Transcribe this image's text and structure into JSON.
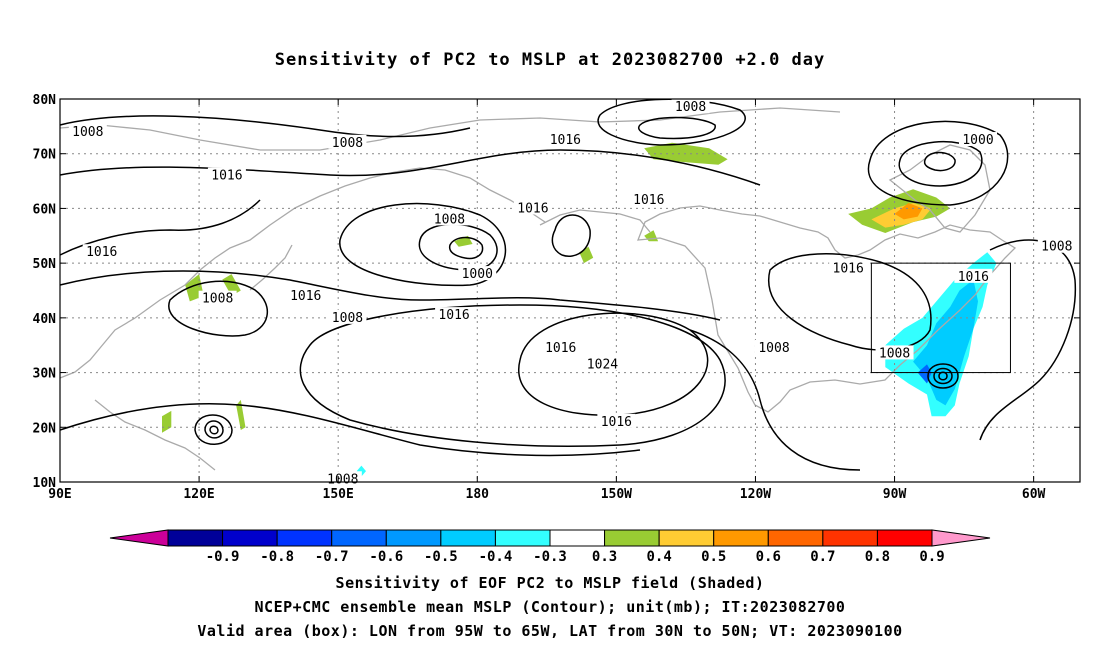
{
  "title": "Sensitivity of PC2 to MSLP at 2023082700 +2.0 day",
  "map": {
    "lon_range": [
      90,
      310
    ],
    "lat_range": [
      10,
      80
    ],
    "lon_ticks": [
      {
        "lon": 90,
        "label": "90E"
      },
      {
        "lon": 120,
        "label": "120E"
      },
      {
        "lon": 150,
        "label": "150E"
      },
      {
        "lon": 180,
        "label": "180"
      },
      {
        "lon": 210,
        "label": "150W"
      },
      {
        "lon": 240,
        "label": "120W"
      },
      {
        "lon": 270,
        "label": "90W"
      },
      {
        "lon": 300,
        "label": "60W"
      }
    ],
    "lat_ticks": [
      {
        "lat": 10,
        "label": "10N"
      },
      {
        "lat": 20,
        "label": "20N"
      },
      {
        "lat": 30,
        "label": "30N"
      },
      {
        "lat": 40,
        "label": "40N"
      },
      {
        "lat": 50,
        "label": "50N"
      },
      {
        "lat": 60,
        "label": "60N"
      },
      {
        "lat": 70,
        "label": "70N"
      },
      {
        "lat": 80,
        "label": "80N"
      }
    ],
    "grid": true,
    "valid_box": {
      "lon_min": 265,
      "lon_max": 295,
      "lat_min": 30,
      "lat_max": 50
    },
    "contour_labels": [
      {
        "text": "1008",
        "lon": 96,
        "lat": 74
      },
      {
        "text": "1008",
        "lon": 152,
        "lat": 72
      },
      {
        "text": "1016",
        "lon": 126,
        "lat": 66
      },
      {
        "text": "1016",
        "lon": 199,
        "lat": 72.5
      },
      {
        "text": "1008",
        "lon": 226,
        "lat": 78.5
      },
      {
        "text": "1000",
        "lon": 288,
        "lat": 72.5
      },
      {
        "text": "1008",
        "lon": 174,
        "lat": 58
      },
      {
        "text": "1016",
        "lon": 192,
        "lat": 60
      },
      {
        "text": "1016",
        "lon": 217,
        "lat": 61.5
      },
      {
        "text": "1000",
        "lon": 180,
        "lat": 48
      },
      {
        "text": "1016",
        "lon": 99,
        "lat": 52
      },
      {
        "text": "1008",
        "lon": 124,
        "lat": 43.5
      },
      {
        "text": "1016",
        "lon": 143,
        "lat": 44
      },
      {
        "text": "1008",
        "lon": 152,
        "lat": 40
      },
      {
        "text": "1016",
        "lon": 175,
        "lat": 40.5
      },
      {
        "text": "1016",
        "lon": 198,
        "lat": 34.5
      },
      {
        "text": "1024",
        "lon": 207,
        "lat": 31.5
      },
      {
        "text": "1008",
        "lon": 244,
        "lat": 34.5
      },
      {
        "text": "1016",
        "lon": 260,
        "lat": 49
      },
      {
        "text": "1008",
        "lon": 270,
        "lat": 33.5
      },
      {
        "text": "1016",
        "lon": 287,
        "lat": 47.5
      },
      {
        "text": "1008",
        "lon": 305,
        "lat": 53
      },
      {
        "text": "1016",
        "lon": 210,
        "lat": 21
      },
      {
        "text": "1008",
        "lon": 151,
        "lat": 10.5
      }
    ],
    "shading": [
      {
        "level": 0.4,
        "color": "#99cc33",
        "lonlat": [
          [
            216,
            71
          ],
          [
            222,
            72
          ],
          [
            230,
            71
          ],
          [
            234,
            69
          ],
          [
            232,
            68
          ],
          [
            224,
            68.5
          ],
          [
            218,
            69
          ]
        ]
      },
      {
        "level": 0.4,
        "color": "#99cc33",
        "lonlat": [
          [
            260,
            59
          ],
          [
            265,
            60
          ],
          [
            269,
            62
          ],
          [
            274,
            63.5
          ],
          [
            279,
            62
          ],
          [
            282,
            60
          ],
          [
            279,
            58.5
          ],
          [
            274,
            57.5
          ],
          [
            268,
            55.5
          ],
          [
            263,
            57
          ]
        ]
      },
      {
        "level": 0.5,
        "color": "#ffcc33",
        "lonlat": [
          [
            265,
            58
          ],
          [
            270,
            60
          ],
          [
            274,
            61
          ],
          [
            278,
            60
          ],
          [
            276,
            58
          ],
          [
            272,
            57
          ],
          [
            268,
            56.5
          ]
        ]
      },
      {
        "level": 0.6,
        "color": "#ff9900",
        "lonlat": [
          [
            270,
            59
          ],
          [
            273,
            61
          ],
          [
            276,
            60
          ],
          [
            275,
            58.5
          ],
          [
            272,
            58
          ]
        ]
      },
      {
        "level": 0.4,
        "color": "#99cc33",
        "lonlat": [
          [
            175,
            54
          ],
          [
            178,
            55
          ],
          [
            179,
            53.5
          ],
          [
            176,
            53
          ]
        ]
      },
      {
        "level": 0.4,
        "color": "#99cc33",
        "lonlat": [
          [
            202,
            52
          ],
          [
            204,
            53
          ],
          [
            205,
            51
          ],
          [
            203,
            50
          ]
        ]
      },
      {
        "level": 0.4,
        "color": "#99cc33",
        "lonlat": [
          [
            216,
            55
          ],
          [
            218,
            56
          ],
          [
            219,
            54
          ],
          [
            217,
            54
          ]
        ]
      },
      {
        "level": 0.4,
        "color": "#99cc33",
        "lonlat": [
          [
            117,
            46
          ],
          [
            120,
            48
          ],
          [
            121,
            44
          ],
          [
            118,
            43
          ]
        ]
      },
      {
        "level": 0.4,
        "color": "#99cc33",
        "lonlat": [
          [
            125,
            47
          ],
          [
            127,
            48
          ],
          [
            129,
            45
          ],
          [
            127,
            44
          ]
        ]
      },
      {
        "level": 0.4,
        "color": "#99cc33",
        "lonlat": [
          [
            112,
            22
          ],
          [
            114,
            23
          ],
          [
            114,
            20
          ],
          [
            112,
            19
          ]
        ]
      },
      {
        "level": 0.4,
        "color": "#99cc33",
        "lonlat": [
          [
            128,
            24
          ],
          [
            129,
            25
          ],
          [
            130,
            20
          ],
          [
            129,
            19.5
          ]
        ]
      },
      {
        "level": -0.3,
        "color": "#33ffff",
        "lonlat": [
          [
            268,
            35
          ],
          [
            272,
            38
          ],
          [
            276,
            40
          ],
          [
            280,
            44
          ],
          [
            283,
            47
          ],
          [
            287,
            50
          ],
          [
            290,
            52
          ],
          [
            292,
            50
          ],
          [
            290,
            46
          ],
          [
            289,
            42
          ],
          [
            287,
            38
          ],
          [
            286,
            33
          ],
          [
            284,
            28
          ],
          [
            283,
            24
          ],
          [
            281,
            22
          ],
          [
            278,
            22
          ],
          [
            277,
            26
          ],
          [
            273,
            28
          ],
          [
            268,
            31
          ]
        ]
      },
      {
        "level": -0.4,
        "color": "#00ccff",
        "lonlat": [
          [
            274,
            32
          ],
          [
            277,
            35
          ],
          [
            279,
            39
          ],
          [
            282,
            42
          ],
          [
            284,
            45
          ],
          [
            287,
            47
          ],
          [
            288,
            43
          ],
          [
            287,
            38
          ],
          [
            285,
            33
          ],
          [
            283,
            27
          ],
          [
            281,
            24
          ],
          [
            279,
            25
          ],
          [
            277,
            29
          ]
        ]
      },
      {
        "level": -0.6,
        "color": "#0066ff",
        "lonlat": [
          [
            275,
            30
          ],
          [
            277,
            31.5
          ],
          [
            278,
            30
          ],
          [
            277,
            28
          ]
        ]
      },
      {
        "level": -0.3,
        "color": "#33ffff",
        "lonlat": [
          [
            154,
            12
          ],
          [
            155,
            13
          ],
          [
            156,
            12
          ],
          [
            155,
            11
          ]
        ]
      }
    ]
  },
  "colorbar": {
    "colors": [
      "#cc0099",
      "#000099",
      "#0000cc",
      "#0033ff",
      "#0066ff",
      "#0099ff",
      "#00ccff",
      "#33ffff",
      "#ffffff",
      "#99cc33",
      "#ffcc33",
      "#ff9900",
      "#ff6600",
      "#ff3300",
      "#ff0000",
      "#ff99cc"
    ],
    "labels": [
      "-0.9",
      "-0.8",
      "-0.7",
      "-0.6",
      "-0.5",
      "-0.4",
      "-0.3",
      "0.3",
      "0.4",
      "0.5",
      "0.6",
      "0.7",
      "0.8",
      "0.9"
    ]
  },
  "captions": [
    "Sensitivity of EOF PC2 to MSLP field (Shaded)",
    "NCEP+CMC ensemble mean MSLP (Contour); unit(mb); IT:2023082700",
    "Valid area (box): LON from 95W to 65W, LAT from 30N to 50N; VT: 2023090100"
  ]
}
